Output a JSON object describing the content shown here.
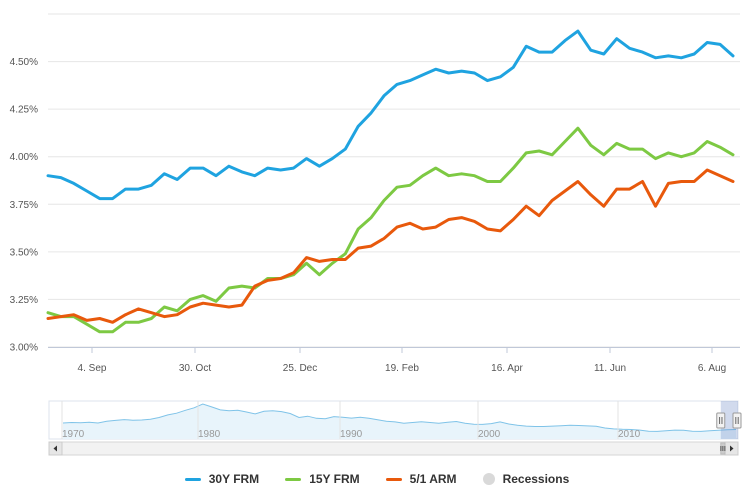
{
  "chart_data": {
    "type": "line",
    "title": "",
    "xlabel": "",
    "ylabel": "",
    "y_ticks": [
      "3.00%",
      "3.25%",
      "3.50%",
      "3.75%",
      "4.00%",
      "4.25%",
      "4.50%"
    ],
    "ylim": [
      3.0,
      4.75
    ],
    "x_ticks": [
      "4. Sep",
      "30. Oct",
      "25. Dec",
      "19. Feb",
      "16. Apr",
      "11. Jun",
      "6. Aug"
    ],
    "grid": "horizontal",
    "legend_placement": "bottom-center",
    "series": [
      {
        "name": "30Y FRM",
        "color": "#1fa3e0",
        "values": [
          3.9,
          3.89,
          3.86,
          3.82,
          3.78,
          3.78,
          3.83,
          3.83,
          3.85,
          3.91,
          3.88,
          3.94,
          3.94,
          3.9,
          3.95,
          3.92,
          3.9,
          3.94,
          3.93,
          3.94,
          3.99,
          3.95,
          3.99,
          4.04,
          4.16,
          4.23,
          4.32,
          4.38,
          4.4,
          4.43,
          4.46,
          4.44,
          4.45,
          4.44,
          4.4,
          4.42,
          4.47,
          4.58,
          4.55,
          4.55,
          4.61,
          4.66,
          4.56,
          4.54,
          4.62,
          4.57,
          4.55,
          4.52,
          4.53,
          4.52,
          4.54,
          4.6,
          4.59,
          4.53
        ]
      },
      {
        "name": "15Y FRM",
        "color": "#7dc943",
        "values": [
          3.18,
          3.16,
          3.16,
          3.12,
          3.08,
          3.08,
          3.13,
          3.13,
          3.15,
          3.21,
          3.19,
          3.25,
          3.27,
          3.24,
          3.31,
          3.32,
          3.31,
          3.36,
          3.36,
          3.38,
          3.44,
          3.38,
          3.44,
          3.49,
          3.62,
          3.68,
          3.77,
          3.84,
          3.85,
          3.9,
          3.94,
          3.9,
          3.91,
          3.9,
          3.87,
          3.87,
          3.94,
          4.02,
          4.03,
          4.01,
          4.08,
          4.15,
          4.06,
          4.01,
          4.07,
          4.04,
          4.04,
          3.99,
          4.02,
          4.0,
          4.02,
          4.08,
          4.05,
          4.01
        ]
      },
      {
        "name": "5/1 ARM",
        "color": "#e8590c",
        "values": [
          3.15,
          3.16,
          3.17,
          3.14,
          3.15,
          3.13,
          3.17,
          3.2,
          3.18,
          3.16,
          3.17,
          3.21,
          3.23,
          3.22,
          3.21,
          3.22,
          3.32,
          3.35,
          3.36,
          3.39,
          3.47,
          3.45,
          3.46,
          3.46,
          3.52,
          3.53,
          3.57,
          3.63,
          3.65,
          3.62,
          3.63,
          3.67,
          3.68,
          3.66,
          3.62,
          3.61,
          3.67,
          3.74,
          3.69,
          3.77,
          3.82,
          3.87,
          3.8,
          3.74,
          3.83,
          3.83,
          3.87,
          3.74,
          3.86,
          3.87,
          3.87,
          3.93,
          3.9,
          3.87
        ]
      }
    ],
    "navigator": {
      "x_ticks": [
        "1970",
        "1980",
        "1990",
        "2000",
        "2010"
      ],
      "values": [
        7.6,
        7.8,
        7.7,
        7.9,
        7.6,
        8.4,
        8.8,
        9.2,
        8.9,
        9.0,
        9.4,
        10.2,
        11.4,
        12.2,
        13.6,
        14.8,
        16.6,
        15.2,
        13.8,
        13.4,
        13.6,
        12.8,
        11.9,
        13.1,
        13.4,
        13.0,
        12.1,
        10.2,
        10.8,
        9.8,
        9.6,
        10.6,
        10.3,
        9.9,
        10.3,
        9.8,
        9.1,
        8.4,
        8.1,
        7.5,
        7.8,
        8.2,
        7.8,
        7.5,
        7.9,
        8.3,
        7.5,
        7.0,
        6.9,
        7.3,
        8.1,
        7.1,
        6.5,
        6.1,
        5.9,
        5.9,
        6.1,
        6.3,
        6.5,
        6.4,
        6.2,
        6.0,
        5.2,
        4.8,
        4.6,
        4.5,
        4.2,
        3.7,
        3.6,
        3.9,
        4.2,
        4.1,
        3.7,
        3.6,
        3.9,
        4.1,
        4.4,
        4.5
      ],
      "ylim": [
        0,
        18
      ],
      "selection_start_fraction": 0.975
    },
    "recessions": {
      "name": "Recessions",
      "color": "#d9d9d9"
    }
  }
}
